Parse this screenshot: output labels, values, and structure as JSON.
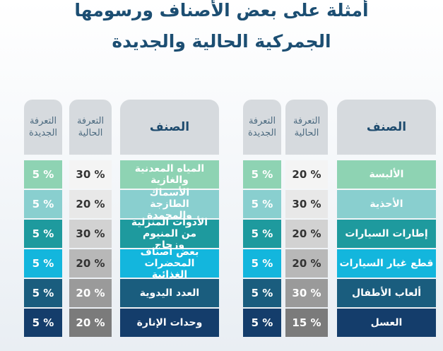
{
  "title": {
    "line1": "أمثلة على بعض الأصناف ورسومها",
    "line2": "الجمركية الحالية والجديدة"
  },
  "headers": {
    "item": "الصنف",
    "current": "التعرفة\nالحالية",
    "new": "التعرفة\nالجديدة"
  },
  "row_colors": [
    "#8ed3b3",
    "#89cfcf",
    "#1e9a9e",
    "#13b6dd",
    "#1a5d7e",
    "#143d6b"
  ],
  "right_table": [
    {
      "item": "الألبسة",
      "current": "20 %",
      "new": "5 %"
    },
    {
      "item": "الأحذية",
      "current": "30 %",
      "new": "5 %"
    },
    {
      "item": "إطارات السيارات",
      "current": "20 %",
      "new": "5 %"
    },
    {
      "item": "قطع غيار السيارات",
      "current": "20 %",
      "new": "5 %"
    },
    {
      "item": "ألعاب الأطفال",
      "current": "30 %",
      "new": "5 %"
    },
    {
      "item": "العسل",
      "current": "15 %",
      "new": "5 %"
    }
  ],
  "left_table": [
    {
      "item": "المياه المعدنية والغازية",
      "current": "30 %",
      "new": "5 %"
    },
    {
      "item": "الأسماك الطازجة والمجمدة",
      "current": "20 %",
      "new": "5 %"
    },
    {
      "item": "الأدوات المنزلية من المنيوم وزجاج",
      "current": "30 %",
      "new": "5 %"
    },
    {
      "item": "بعض أصناف المحضرات الغذائية",
      "current": "20 %",
      "new": "5 %"
    },
    {
      "item": "العدد اليدوية",
      "current": "20 %",
      "new": "5 %"
    },
    {
      "item": "وحدات الإنارة",
      "current": "20 %",
      "new": "5 %"
    }
  ]
}
